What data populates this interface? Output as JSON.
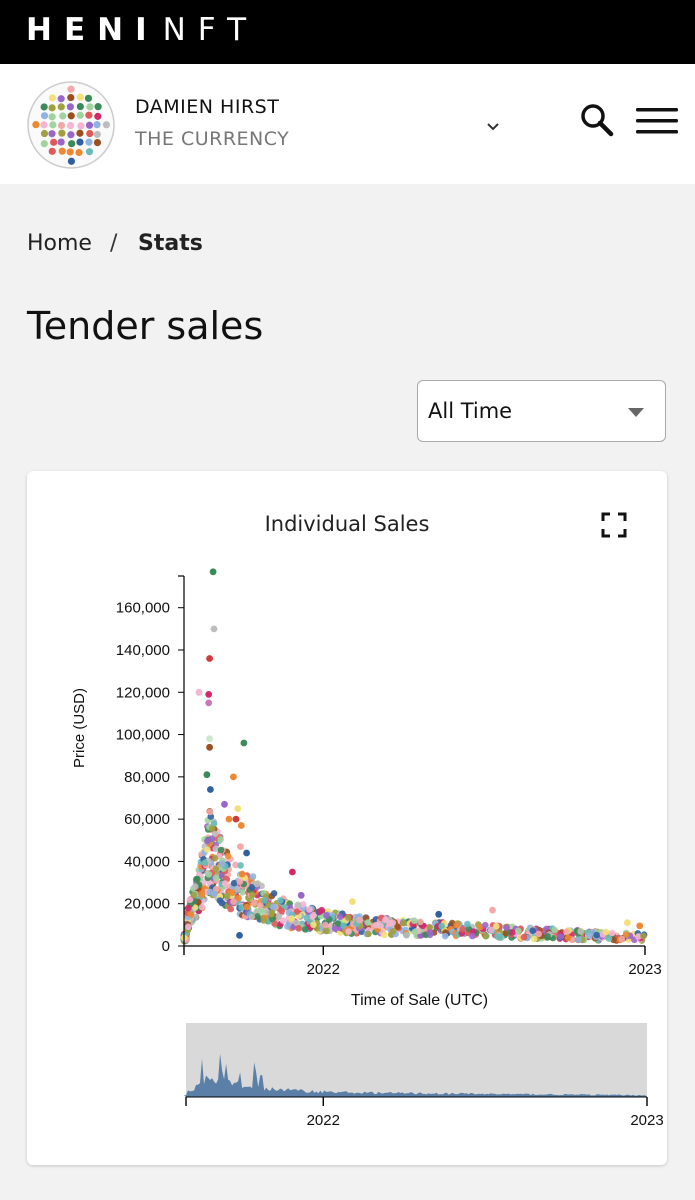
{
  "nav": {
    "brand_bold": "HENI",
    "brand_light": "NFT"
  },
  "header": {
    "artist": "DAMIEN HIRST",
    "collection": "THE CURRENCY"
  },
  "icons": {
    "logo": "spot-painting-logo",
    "dropdown": "chevron-down-icon",
    "search": "search-icon",
    "menu": "hamburger-menu-icon",
    "fullscreen": "fullscreen-icon"
  },
  "breadcrumb": {
    "home": "Home",
    "separator": "/",
    "current": "Stats"
  },
  "page": {
    "title": "Tender sales"
  },
  "time_filter": {
    "selected": "All Time"
  },
  "chart_data": {
    "type": "scatter",
    "title": "Individual Sales",
    "xlabel": "Time of Sale (UTC)",
    "ylabel": "Price (USD)",
    "x_ticks": [
      "2022",
      "2023"
    ],
    "y_ticks": [
      "0",
      "20,000",
      "40,000",
      "60,000",
      "80,000",
      "100,000",
      "120,000",
      "140,000",
      "160,000"
    ],
    "xlim": [
      "2021-07-27",
      "2023-01-01"
    ],
    "ylim": [
      0,
      175000
    ],
    "outliers": [
      {
        "x": "2021-08-29",
        "y": 177000,
        "color": "#3a8a5a"
      },
      {
        "x": "2021-08-30",
        "y": 150000,
        "color": "#bdbdbd"
      },
      {
        "x": "2021-08-25",
        "y": 136000,
        "color": "#d03a3a"
      },
      {
        "x": "2021-08-13",
        "y": 120000,
        "color": "#f4b6d2"
      },
      {
        "x": "2021-08-24",
        "y": 119000,
        "color": "#d02a6a"
      },
      {
        "x": "2021-08-24",
        "y": 115000,
        "color": "#c878b8"
      },
      {
        "x": "2021-08-25",
        "y": 98000,
        "color": "#cde8cd"
      },
      {
        "x": "2021-10-03",
        "y": 96000,
        "color": "#3a8a5a"
      },
      {
        "x": "2021-08-25",
        "y": 94000,
        "color": "#9a5020"
      },
      {
        "x": "2021-08-22",
        "y": 81000,
        "color": "#3a8a5a"
      },
      {
        "x": "2021-09-21",
        "y": 80000,
        "color": "#ee8833"
      },
      {
        "x": "2021-08-26",
        "y": 74000,
        "color": "#3060a0"
      },
      {
        "x": "2021-09-30",
        "y": 57000,
        "color": "#ee8833"
      },
      {
        "x": "2021-09-29",
        "y": 47000,
        "color": "#f4a8a8"
      },
      {
        "x": "2021-10-06",
        "y": 44000,
        "color": "#3060a0"
      },
      {
        "x": "2021-09-11",
        "y": 67000,
        "color": "#9966cc"
      },
      {
        "x": "2021-09-16",
        "y": 60000,
        "color": "#ee8833"
      },
      {
        "x": "2021-09-24",
        "y": 60000,
        "color": "#d03a3a"
      },
      {
        "x": "2021-09-26",
        "y": 65000,
        "color": "#f4e07a"
      },
      {
        "x": "2021-10-01",
        "y": 34000,
        "color": "#ee8833"
      },
      {
        "x": "2021-11-27",
        "y": 35000,
        "color": "#d02a6a"
      },
      {
        "x": "2021-09-28",
        "y": 5000,
        "color": "#3060a0"
      },
      {
        "x": "2021-12-07",
        "y": 24000,
        "color": "#9966cc"
      },
      {
        "x": "2022-02-03",
        "y": 21000,
        "color": "#f4e07a"
      },
      {
        "x": "2022-05-12",
        "y": 15000,
        "color": "#3060a0"
      },
      {
        "x": "2022-07-12",
        "y": 17000,
        "color": "#f4a8a8"
      },
      {
        "x": "2022-12-12",
        "y": 11000,
        "color": "#f4e07a"
      },
      {
        "x": "2022-12-26",
        "y": 9500,
        "color": "#ee8833"
      }
    ],
    "bulk_trend": [
      {
        "x": "2021-07-30",
        "median": 12000
      },
      {
        "x": "2021-08-10",
        "median": 22000
      },
      {
        "x": "2021-08-25",
        "median": 45000
      },
      {
        "x": "2021-09-10",
        "median": 33000
      },
      {
        "x": "2021-10-01",
        "median": 26000
      },
      {
        "x": "2021-11-01",
        "median": 18000
      },
      {
        "x": "2021-12-15",
        "median": 13000
      },
      {
        "x": "2022-02-01",
        "median": 10000
      },
      {
        "x": "2022-05-01",
        "median": 8000
      },
      {
        "x": "2022-08-01",
        "median": 6500
      },
      {
        "x": "2022-11-01",
        "median": 5000
      },
      {
        "x": "2023-01-01",
        "median": 4000
      }
    ],
    "palette": [
      "#e05a5a",
      "#f4a8a8",
      "#3a8a5a",
      "#9fd49f",
      "#3060a0",
      "#8fb4e0",
      "#ee8833",
      "#f4e07a",
      "#9966cc",
      "#d02a6a",
      "#bdbdbd",
      "#9a5020",
      "#f4b6d2",
      "#66bbbb",
      "#a0a040"
    ],
    "overview": {
      "type": "area",
      "color": "#5b7fa6",
      "background": "#d9d9d9",
      "x_ticks": [
        "2022",
        "2023"
      ]
    }
  }
}
